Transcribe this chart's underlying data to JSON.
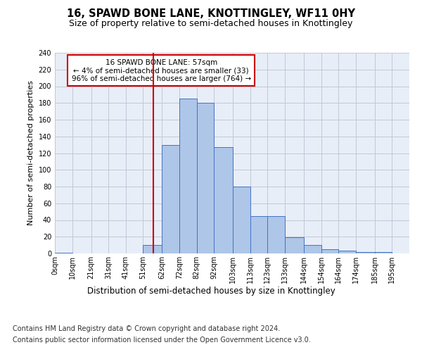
{
  "title1": "16, SPAWD BONE LANE, KNOTTINGLEY, WF11 0HY",
  "title2": "Size of property relative to semi-detached houses in Knottingley",
  "xlabel": "Distribution of semi-detached houses by size in Knottingley",
  "ylabel": "Number of semi-detached properties",
  "footer1": "Contains HM Land Registry data © Crown copyright and database right 2024.",
  "footer2": "Contains public sector information licensed under the Open Government Licence v3.0.",
  "annotation_line1": "16 SPAWD BONE LANE: 57sqm",
  "annotation_line2": "← 4% of semi-detached houses are smaller (33)",
  "annotation_line3": "96% of semi-detached houses are larger (764) →",
  "subject_value": 57,
  "bins": [
    0,
    10,
    21,
    31,
    41,
    51,
    62,
    72,
    82,
    92,
    103,
    113,
    123,
    133,
    144,
    154,
    164,
    174,
    185,
    195,
    205
  ],
  "bar_heights": [
    1,
    0,
    0,
    0,
    0,
    10,
    130,
    185,
    180,
    127,
    80,
    45,
    45,
    19,
    10,
    5,
    3,
    2,
    2,
    0
  ],
  "bar_color": "#aec6e8",
  "bar_edge_color": "#4472c4",
  "vline_color": "#cc0000",
  "vline_x": 57,
  "box_color": "#cc0000",
  "ylim": [
    0,
    240
  ],
  "yticks": [
    0,
    20,
    40,
    60,
    80,
    100,
    120,
    140,
    160,
    180,
    200,
    220,
    240
  ],
  "grid_color": "#c0c8d8",
  "bg_color": "#e8eef8",
  "fig_bg_color": "#ffffff",
  "title1_fontsize": 10.5,
  "title2_fontsize": 9,
  "xlabel_fontsize": 8.5,
  "ylabel_fontsize": 8,
  "tick_fontsize": 7,
  "annotation_fontsize": 7.5,
  "footer_fontsize": 7
}
